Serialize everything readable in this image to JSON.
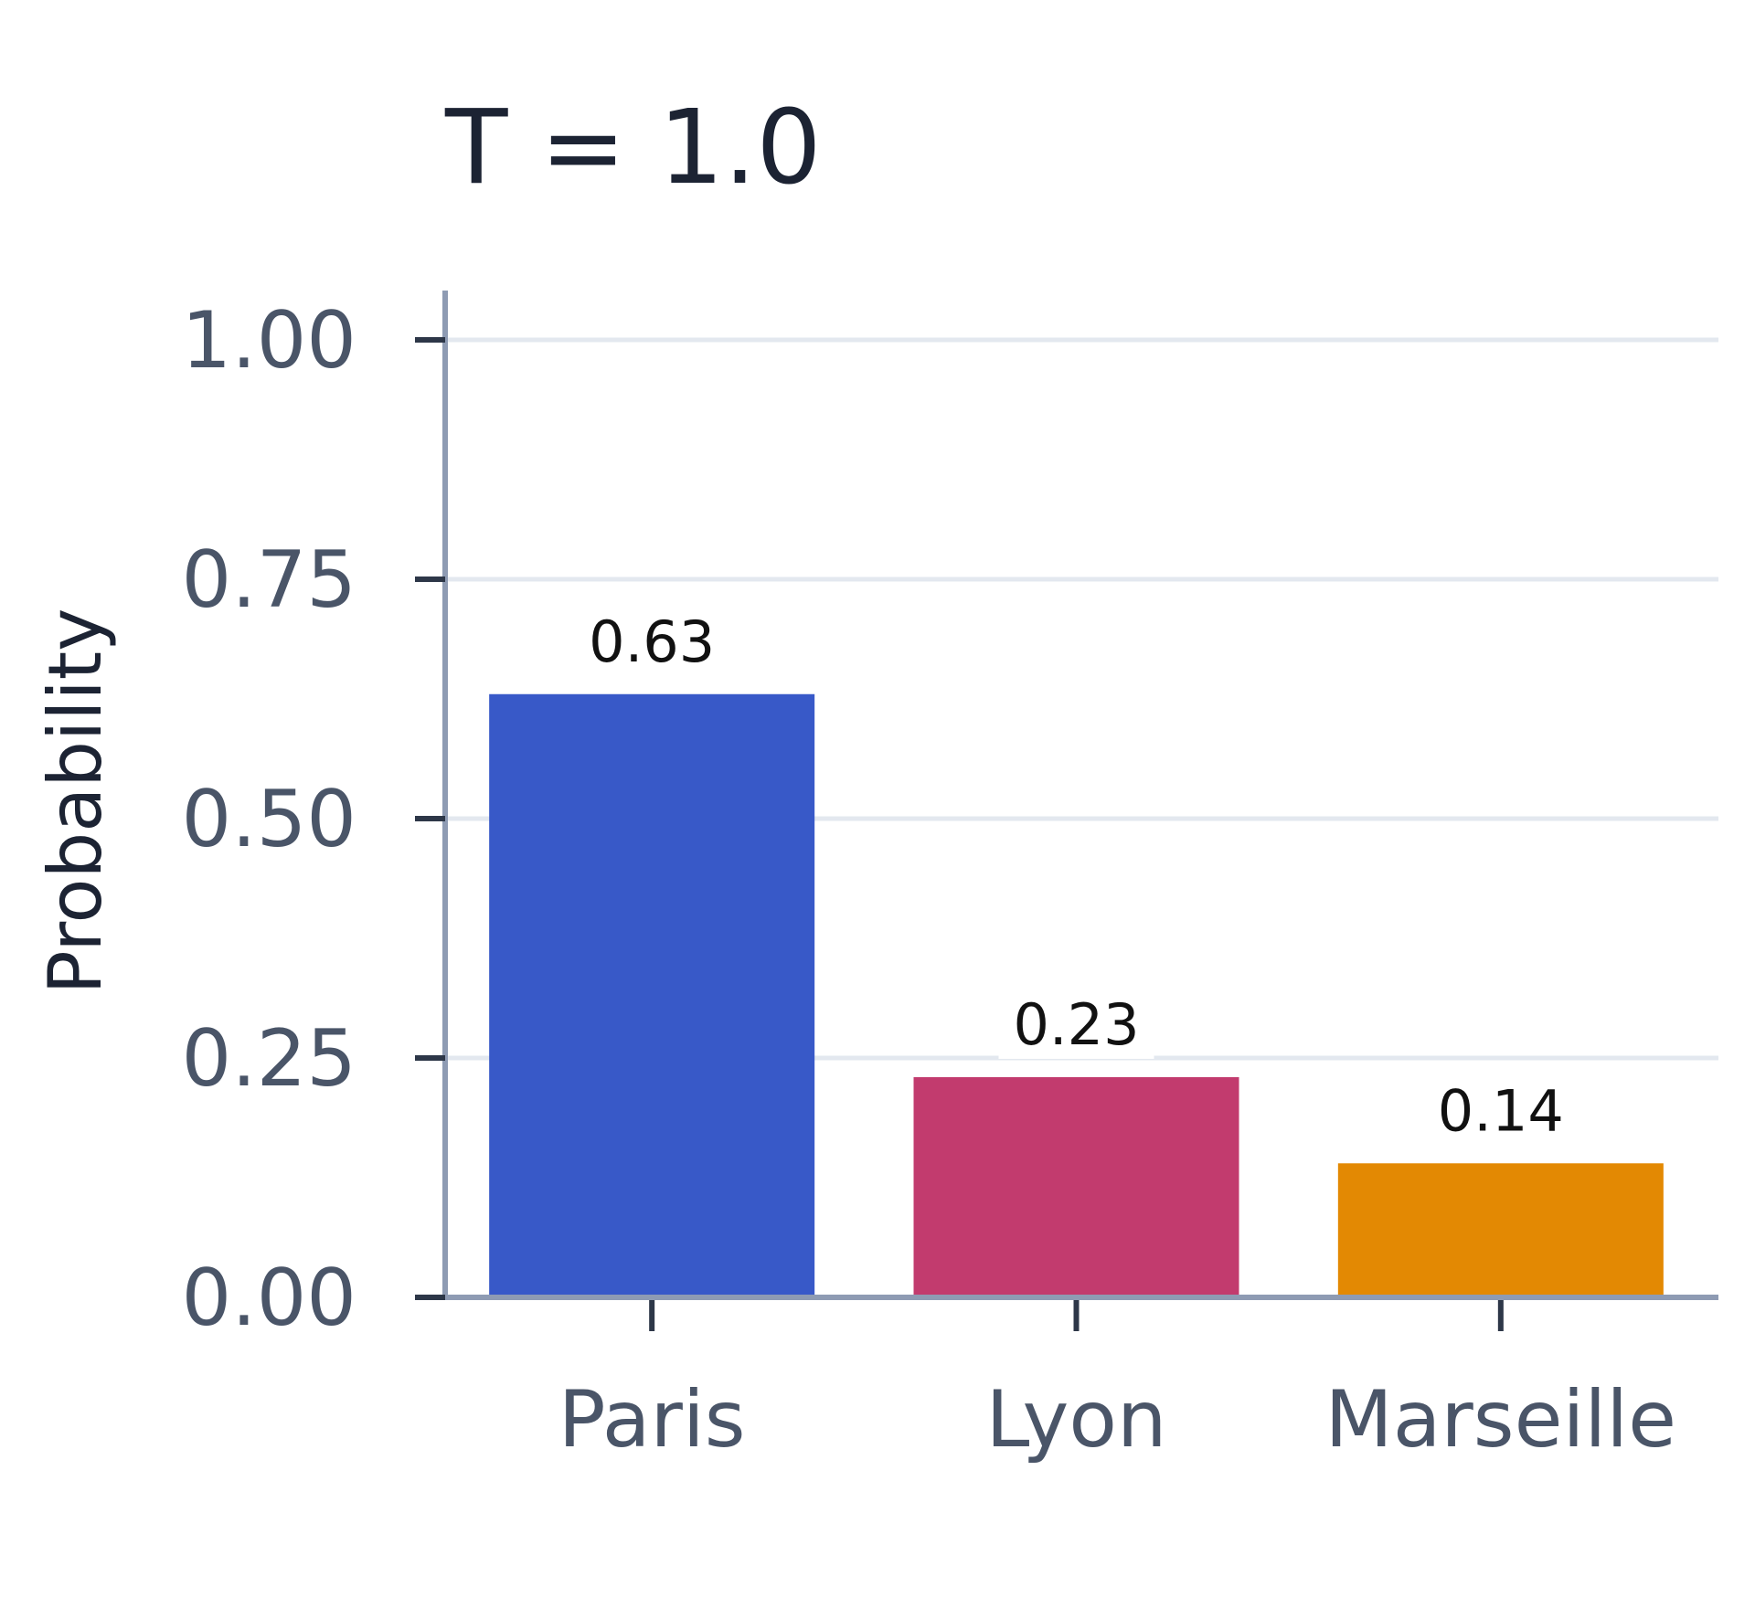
{
  "chart_data": {
    "type": "bar",
    "title": "T = 1.0",
    "xlabel": "",
    "ylabel": "Probability",
    "categories": [
      "Paris",
      "Lyon",
      "Marseille"
    ],
    "values": [
      0.63,
      0.23,
      0.14
    ],
    "value_labels": [
      "0.63",
      "0.23",
      "0.14"
    ],
    "colors": [
      "#3859c8",
      "#c23b6e",
      "#e38903"
    ],
    "ylim": [
      0,
      1
    ],
    "yticks": [
      0,
      0.25,
      0.5,
      0.75,
      1.0
    ],
    "ytick_labels": [
      "0.00",
      "0.25",
      "0.50",
      "0.75",
      "1.00"
    ],
    "grid": true,
    "legend": "none"
  }
}
